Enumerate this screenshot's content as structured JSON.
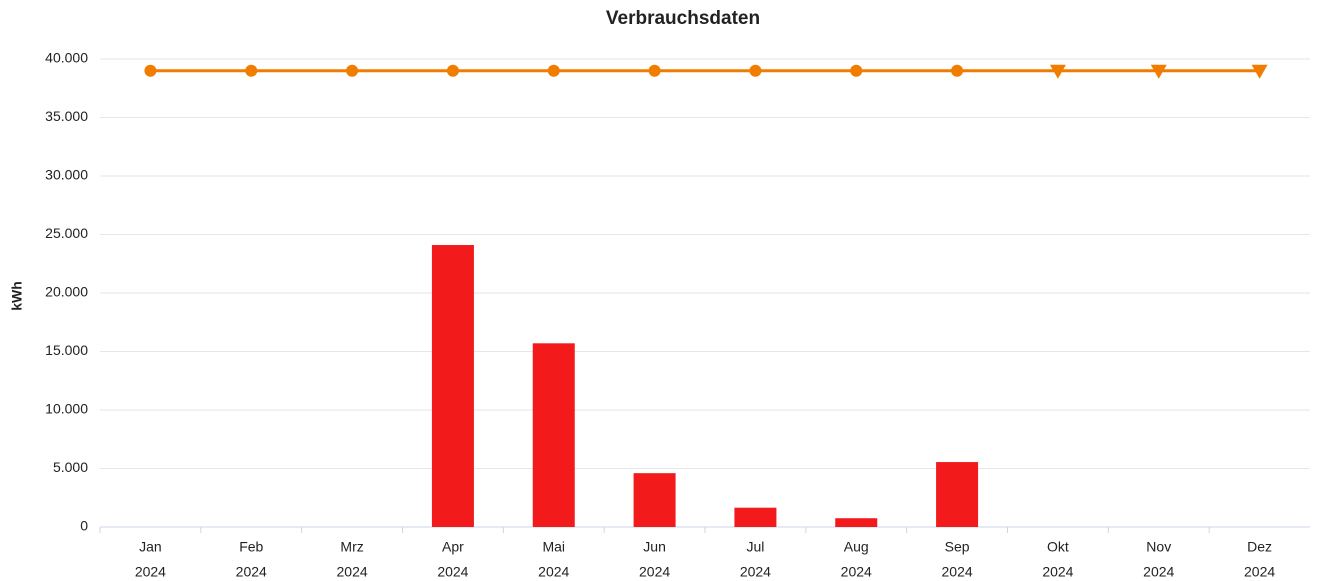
{
  "chart_data": {
    "type": "bar",
    "title": "Verbrauchsdaten",
    "y_label": "kWh",
    "categories": [
      [
        "Jan",
        "2024"
      ],
      [
        "Feb",
        "2024"
      ],
      [
        "Mrz",
        "2024"
      ],
      [
        "Apr",
        "2024"
      ],
      [
        "Mai",
        "2024"
      ],
      [
        "Jun",
        "2024"
      ],
      [
        "Jul",
        "2024"
      ],
      [
        "Aug",
        "2024"
      ],
      [
        "Sep",
        "2024"
      ],
      [
        "Okt",
        "2024"
      ],
      [
        "Nov",
        "2024"
      ],
      [
        "Dez",
        "2024"
      ]
    ],
    "series": [
      {
        "type": "bar",
        "color": "#f21a1a",
        "values": [
          null,
          null,
          null,
          24100,
          15700,
          4600,
          1650,
          750,
          5550,
          null,
          null,
          null
        ]
      },
      {
        "type": "line",
        "color": "#f07d00",
        "values": [
          39000,
          39000,
          39000,
          39000,
          39000,
          39000,
          39000,
          39000,
          39000,
          39000,
          39000,
          39000
        ],
        "markers": [
          "circle",
          "circle",
          "circle",
          "circle",
          "circle",
          "circle",
          "circle",
          "circle",
          "circle",
          "triangle-down",
          "triangle-down",
          "triangle-down"
        ]
      }
    ],
    "ylim": [
      0,
      40000
    ],
    "yticks": [
      0,
      {
        "value": 5000,
        "label": "5.000"
      },
      {
        "value": 10000,
        "label": "10.000"
      },
      {
        "value": 15000,
        "label": "15.000"
      },
      {
        "value": 20000,
        "label": "20.000"
      },
      {
        "value": 25000,
        "label": "25.000"
      },
      {
        "value": 30000,
        "label": "30.000"
      },
      {
        "value": 35000,
        "label": "35.000"
      },
      {
        "value": 40000,
        "label": "40.000"
      }
    ],
    "grid": true
  }
}
